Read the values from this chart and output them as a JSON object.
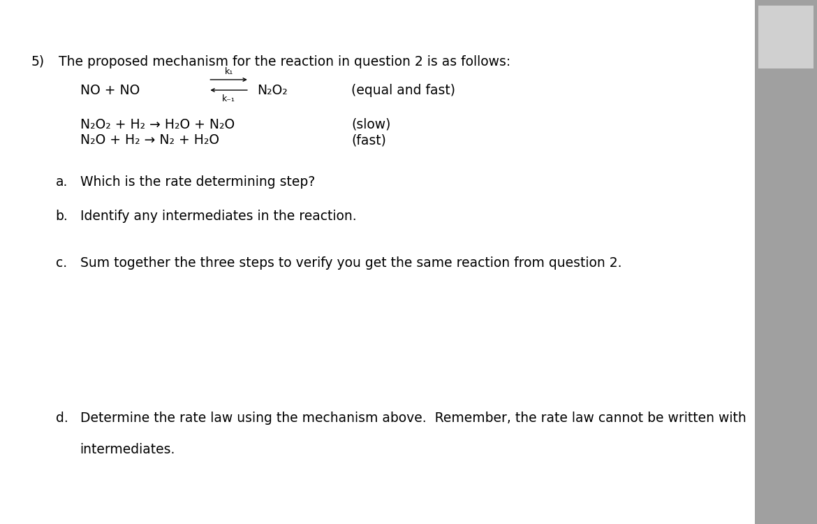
{
  "bg_color": "#ffffff",
  "text_color": "#000000",
  "fig_width": 11.7,
  "fig_height": 7.5,
  "question_number": "5)",
  "title_text": "The proposed mechanism for the reaction in question 2 is as follows:",
  "reaction1_left": "NO + NO",
  "reaction1_right": "N₂O₂",
  "reaction1_note": "(equal and fast)",
  "reaction1_k1": "k₁",
  "reaction1_k_1": "k₋₁",
  "reaction2": "N₂O₂ + H₂ → H₂O + N₂O",
  "reaction2_note": "(slow)",
  "reaction3": "N₂O + H₂ → N₂ + H₂O",
  "reaction3_note": "(fast)",
  "part_a_label": "a.",
  "part_a_text": "Which is the rate determining step?",
  "part_b_label": "b.",
  "part_b_text": "Identify any intermediates in the reaction.",
  "part_c_label": "c.",
  "part_c_text": "Sum together the three steps to verify you get the same reaction from question 2.",
  "part_d_label": "d.",
  "part_d_line1": "Determine the rate law using the mechanism above.  Remember, the rate law cannot be written with",
  "part_d_line2": "intermediates.",
  "scrollbar_color": "#a0a0a0",
  "main_font": 13.5,
  "small_font": 9.0
}
